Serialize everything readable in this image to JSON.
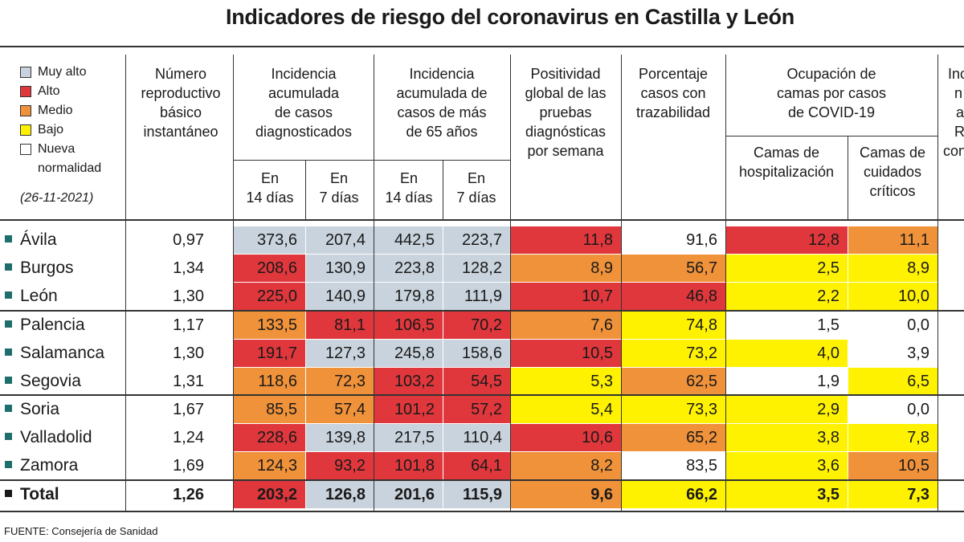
{
  "title": "Indicadores de riesgo del coronavirus en Castilla y León",
  "legend": {
    "items": [
      {
        "label": "Muy alto",
        "color": "#c9d3dd"
      },
      {
        "label": "Alto",
        "color": "#e0373c"
      },
      {
        "label": "Medio",
        "color": "#f0923a"
      },
      {
        "label": "Bajo",
        "color": "#fff200"
      },
      {
        "label": "Nueva",
        "color": "#ffffff"
      }
    ],
    "extra_label": "normalidad",
    "date": "(26-11-2021)"
  },
  "headers": {
    "reproductivo": [
      "Número",
      "reproductivo",
      "básico",
      "instantáneo"
    ],
    "ia_casos": [
      "Incidencia",
      "acumulada",
      "de casos",
      "diagnosticados"
    ],
    "ia_65": [
      "Incidencia",
      "acumulada de",
      "casos de más",
      "de 65 años"
    ],
    "positividad": [
      "Positividad",
      "global de las",
      "pruebas",
      "diagnósticas",
      "por semana"
    ],
    "trazabilidad": [
      "Porcentaje",
      "casos con",
      "trazabilidad"
    ],
    "ocupacion": [
      "Ocupación de",
      "camas por casos",
      "de COVID-19"
    ],
    "camas_hosp": [
      "Camas de",
      "hospitalización"
    ],
    "camas_crit": [
      "Camas de",
      "cuidados",
      "críticos"
    ],
    "cut_off": [
      "Inc",
      "n",
      "a",
      "R",
      "con"
    ],
    "en14": [
      "En",
      "14 días"
    ],
    "en7": [
      "En",
      "7 días"
    ]
  },
  "chart_data": {
    "type": "table",
    "columns": [
      "Número reproductivo básico instantáneo",
      "Incidencia acumulada de casos diagnosticados - En 14 días",
      "Incidencia acumulada de casos diagnosticados - En 7 días",
      "Incidencia acumulada de casos de más de 65 años - En 14 días",
      "Incidencia acumulada de casos de más de 65 años - En 7 días",
      "Positividad global de las pruebas diagnósticas por semana",
      "Porcentaje casos con trazabilidad",
      "Camas de hospitalización",
      "Camas de cuidados críticos"
    ],
    "rows": [
      {
        "name": "Ávila",
        "values": [
          "0,97",
          "373,6",
          "207,4",
          "442,5",
          "223,7",
          "11,8",
          "91,6",
          "12,8",
          "11,1"
        ],
        "levels": [
          "",
          "muy_alto",
          "muy_alto",
          "muy_alto",
          "muy_alto",
          "alto",
          "nueva",
          "alto",
          "medio"
        ]
      },
      {
        "name": "Burgos",
        "values": [
          "1,34",
          "208,6",
          "130,9",
          "223,8",
          "128,2",
          "8,9",
          "56,7",
          "2,5",
          "8,9"
        ],
        "levels": [
          "",
          "alto",
          "muy_alto",
          "muy_alto",
          "muy_alto",
          "medio",
          "medio",
          "bajo",
          "bajo"
        ]
      },
      {
        "name": "León",
        "values": [
          "1,30",
          "225,0",
          "140,9",
          "179,8",
          "111,9",
          "10,7",
          "46,8",
          "2,2",
          "10,0"
        ],
        "levels": [
          "",
          "alto",
          "muy_alto",
          "muy_alto",
          "muy_alto",
          "alto",
          "alto",
          "bajo",
          "bajo"
        ]
      },
      {
        "name": "Palencia",
        "values": [
          "1,17",
          "133,5",
          "81,1",
          "106,5",
          "70,2",
          "7,6",
          "74,8",
          "1,5",
          "0,0"
        ],
        "levels": [
          "",
          "medio",
          "alto",
          "alto",
          "alto",
          "medio",
          "bajo",
          "nueva",
          "nueva"
        ]
      },
      {
        "name": "Salamanca",
        "values": [
          "1,30",
          "191,7",
          "127,3",
          "245,8",
          "158,6",
          "10,5",
          "73,2",
          "4,0",
          "3,9"
        ],
        "levels": [
          "",
          "alto",
          "muy_alto",
          "muy_alto",
          "muy_alto",
          "alto",
          "bajo",
          "bajo",
          "nueva"
        ]
      },
      {
        "name": "Segovia",
        "values": [
          "1,31",
          "118,6",
          "72,3",
          "103,2",
          "54,5",
          "5,3",
          "62,5",
          "1,9",
          "6,5"
        ],
        "levels": [
          "",
          "medio",
          "medio",
          "alto",
          "alto",
          "bajo",
          "medio",
          "nueva",
          "bajo"
        ]
      },
      {
        "name": "Soria",
        "values": [
          "1,67",
          "85,5",
          "57,4",
          "101,2",
          "57,2",
          "5,4",
          "73,3",
          "2,9",
          "0,0"
        ],
        "levels": [
          "",
          "medio",
          "medio",
          "alto",
          "alto",
          "bajo",
          "bajo",
          "bajo",
          "nueva"
        ]
      },
      {
        "name": "Valladolid",
        "values": [
          "1,24",
          "228,6",
          "139,8",
          "217,5",
          "110,4",
          "10,6",
          "65,2",
          "3,8",
          "7,8"
        ],
        "levels": [
          "",
          "alto",
          "muy_alto",
          "muy_alto",
          "muy_alto",
          "alto",
          "medio",
          "bajo",
          "bajo"
        ]
      },
      {
        "name": "Zamora",
        "values": [
          "1,69",
          "124,3",
          "93,2",
          "101,8",
          "64,1",
          "8,2",
          "83,5",
          "3,6",
          "10,5"
        ],
        "levels": [
          "",
          "medio",
          "alto",
          "alto",
          "alto",
          "medio",
          "nueva",
          "bajo",
          "medio"
        ]
      },
      {
        "name": "Total",
        "values": [
          "1,26",
          "203,2",
          "126,8",
          "201,6",
          "115,9",
          "9,6",
          "66,2",
          "3,5",
          "7,3"
        ],
        "levels": [
          "",
          "alto",
          "muy_alto",
          "muy_alto",
          "muy_alto",
          "medio",
          "bajo",
          "bajo",
          "bajo"
        ],
        "total": true
      }
    ],
    "level_colors": {
      "muy_alto": "#c9d3dd",
      "alto": "#e0373c",
      "medio": "#f0923a",
      "bajo": "#fff200",
      "nueva": "#ffffff"
    }
  },
  "source": "FUENTE: Consejería de Sanidad"
}
